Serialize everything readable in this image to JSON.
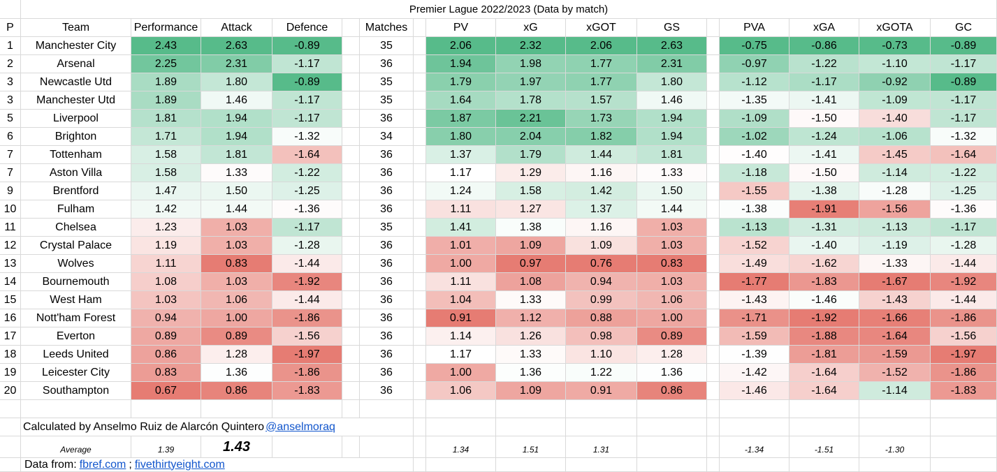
{
  "title": "Premier Lague 2022/2023 (Data by match)",
  "headers": [
    "P",
    "Team",
    "Performance",
    "Attack",
    "Defence",
    "",
    "Matches",
    "",
    "PV",
    "xG",
    "xGOT",
    "GS",
    "",
    "PVA",
    "xGA",
    "xGOTA",
    "GC"
  ],
  "rows": [
    [
      "1",
      "Manchester City",
      "2.43",
      "2.63",
      "-0.89",
      "35",
      "2.06",
      "2.32",
      "2.06",
      "2.63",
      "-0.75",
      "-0.86",
      "-0.73",
      "-0.89"
    ],
    [
      "2",
      "Arsenal",
      "2.25",
      "2.31",
      "-1.17",
      "36",
      "1.94",
      "1.98",
      "1.77",
      "2.31",
      "-0.97",
      "-1.22",
      "-1.10",
      "-1.17"
    ],
    [
      "3",
      "Newcastle Utd",
      "1.89",
      "1.80",
      "-0.89",
      "35",
      "1.79",
      "1.97",
      "1.77",
      "1.80",
      "-1.12",
      "-1.17",
      "-0.92",
      "-0.89"
    ],
    [
      "3",
      "Manchester Utd",
      "1.89",
      "1.46",
      "-1.17",
      "35",
      "1.64",
      "1.78",
      "1.57",
      "1.46",
      "-1.35",
      "-1.41",
      "-1.09",
      "-1.17"
    ],
    [
      "5",
      "Liverpool",
      "1.81",
      "1.94",
      "-1.17",
      "36",
      "1.87",
      "2.21",
      "1.73",
      "1.94",
      "-1.09",
      "-1.50",
      "-1.40",
      "-1.17"
    ],
    [
      "6",
      "Brighton",
      "1.71",
      "1.94",
      "-1.32",
      "34",
      "1.80",
      "2.04",
      "1.82",
      "1.94",
      "-1.02",
      "-1.24",
      "-1.06",
      "-1.32"
    ],
    [
      "7",
      "Tottenham",
      "1.58",
      "1.81",
      "-1.64",
      "36",
      "1.37",
      "1.79",
      "1.44",
      "1.81",
      "-1.40",
      "-1.41",
      "-1.45",
      "-1.64"
    ],
    [
      "7",
      "Aston Villa",
      "1.58",
      "1.33",
      "-1.22",
      "36",
      "1.17",
      "1.29",
      "1.16",
      "1.33",
      "-1.18",
      "-1.50",
      "-1.14",
      "-1.22"
    ],
    [
      "9",
      "Brentford",
      "1.47",
      "1.50",
      "-1.25",
      "36",
      "1.24",
      "1.58",
      "1.42",
      "1.50",
      "-1.55",
      "-1.38",
      "-1.28",
      "-1.25"
    ],
    [
      "10",
      "Fulham",
      "1.42",
      "1.44",
      "-1.36",
      "36",
      "1.11",
      "1.27",
      "1.37",
      "1.44",
      "-1.38",
      "-1.91",
      "-1.56",
      "-1.36"
    ],
    [
      "11",
      "Chelsea",
      "1.23",
      "1.03",
      "-1.17",
      "35",
      "1.41",
      "1.38",
      "1.16",
      "1.03",
      "-1.13",
      "-1.31",
      "-1.13",
      "-1.17"
    ],
    [
      "12",
      "Crystal Palace",
      "1.19",
      "1.03",
      "-1.28",
      "36",
      "1.01",
      "1.09",
      "1.09",
      "1.03",
      "-1.52",
      "-1.40",
      "-1.19",
      "-1.28"
    ],
    [
      "13",
      "Wolves",
      "1.11",
      "0.83",
      "-1.44",
      "36",
      "1.00",
      "0.97",
      "0.76",
      "0.83",
      "-1.49",
      "-1.62",
      "-1.33",
      "-1.44"
    ],
    [
      "14",
      "Bournemouth",
      "1.08",
      "1.03",
      "-1.92",
      "36",
      "1.11",
      "1.08",
      "0.94",
      "1.03",
      "-1.77",
      "-1.83",
      "-1.67",
      "-1.92"
    ],
    [
      "15",
      "West Ham",
      "1.03",
      "1.06",
      "-1.44",
      "36",
      "1.04",
      "1.33",
      "0.99",
      "1.06",
      "-1.43",
      "-1.46",
      "-1.43",
      "-1.44"
    ],
    [
      "16",
      "Nott'ham Forest",
      "0.94",
      "1.00",
      "-1.86",
      "36",
      "0.91",
      "1.12",
      "0.88",
      "1.00",
      "-1.71",
      "-1.92",
      "-1.66",
      "-1.86"
    ],
    [
      "17",
      "Everton",
      "0.89",
      "0.89",
      "-1.56",
      "36",
      "1.14",
      "1.26",
      "0.98",
      "0.89",
      "-1.59",
      "-1.88",
      "-1.64",
      "-1.56"
    ],
    [
      "18",
      "Leeds United",
      "0.86",
      "1.28",
      "-1.97",
      "36",
      "1.17",
      "1.33",
      "1.10",
      "1.28",
      "-1.39",
      "-1.81",
      "-1.59",
      "-1.97"
    ],
    [
      "19",
      "Leicester City",
      "0.83",
      "1.36",
      "-1.86",
      "36",
      "1.00",
      "1.36",
      "1.22",
      "1.36",
      "-1.42",
      "-1.64",
      "-1.52",
      "-1.86"
    ],
    [
      "20",
      "Southampton",
      "0.67",
      "0.86",
      "-1.83",
      "36",
      "1.06",
      "1.09",
      "0.91",
      "0.86",
      "-1.46",
      "-1.64",
      "-1.14",
      "-1.83"
    ]
  ],
  "credit": {
    "text": "Calculated by Anselmo Ruiz de Alarcón Quintero",
    "handle": "@anselmoraq"
  },
  "averages": {
    "label": "Average",
    "performance": "1.39",
    "attack": "1.43",
    "pv": "1.34",
    "xg": "1.51",
    "xgot": "1.31",
    "pva": "-1.34",
    "xga": "-1.51",
    "xgota": "-1.30"
  },
  "sources": {
    "prefix": "Data from:",
    "link1": "fbref.com",
    "separator": ";",
    "link2": "fivethirtyeight.com"
  },
  "colors": {
    "green": "#57bb8a",
    "white": "#ffffff",
    "red": "#e67c73",
    "grid": "#d9d9d9"
  }
}
